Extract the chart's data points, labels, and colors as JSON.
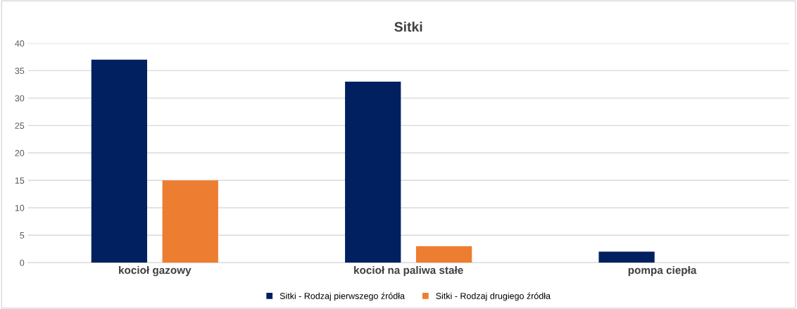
{
  "chart_data": {
    "type": "bar",
    "title": "Sitki",
    "categories": [
      "kocioł gazowy",
      "kocioł na paliwa stałe",
      "pompa ciepła"
    ],
    "series": [
      {
        "name": "Sitki - Rodzaj pierwszego źródła",
        "color": "#002060",
        "values": [
          37,
          33,
          2
        ]
      },
      {
        "name": "Sitki - Rodzaj drugiego źródła",
        "color": "#ed7d31",
        "values": [
          15,
          3,
          null
        ]
      }
    ],
    "ylim": [
      0,
      40
    ],
    "yticks": [
      0,
      5,
      10,
      15,
      20,
      25,
      30,
      35,
      40
    ],
    "grid": "y",
    "legend": "bottom"
  }
}
